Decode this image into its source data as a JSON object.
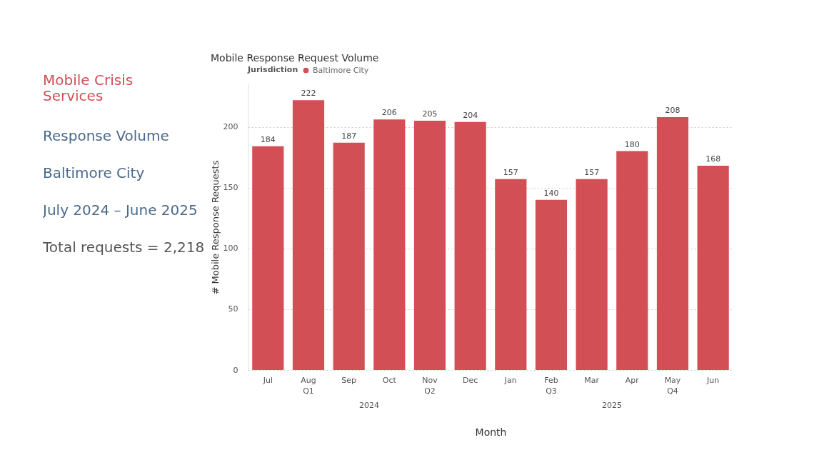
{
  "chart_data": [
    {
      "type": "other",
      "title": "Mobile Crisis Services",
      "subtitle": "Response Volume",
      "annotations": [
        "Baltimore City",
        "July 2024 – June 2025",
        "Total requests = 2,218"
      ]
    },
    {
      "type": "bar",
      "title": "Mobile Response Request Volume",
      "xlabel": "Month",
      "ylabel": "# Mobile Response Requests",
      "legend_title": "Jurisdiction",
      "legend": "top left",
      "categories": [
        "Jul",
        "Aug\nQ1",
        "Sep",
        "Oct",
        "Nov\nQ2",
        "Dec",
        "Jan",
        "Feb\nQ3",
        "Mar",
        "Apr",
        "May\nQ4",
        "Jun"
      ],
      "series": [
        {
          "name": "Baltimore City",
          "color": "#d24f55",
          "values": [
            184,
            222,
            187,
            206,
            205,
            204,
            157,
            140,
            157,
            180,
            208,
            168
          ]
        }
      ],
      "ylim": [
        0,
        235
      ],
      "yticks": [
        0,
        50,
        100,
        150,
        200
      ],
      "grid": "y",
      "data_labels": true,
      "annotations": [
        "2024",
        "2025"
      ]
    }
  ]
}
